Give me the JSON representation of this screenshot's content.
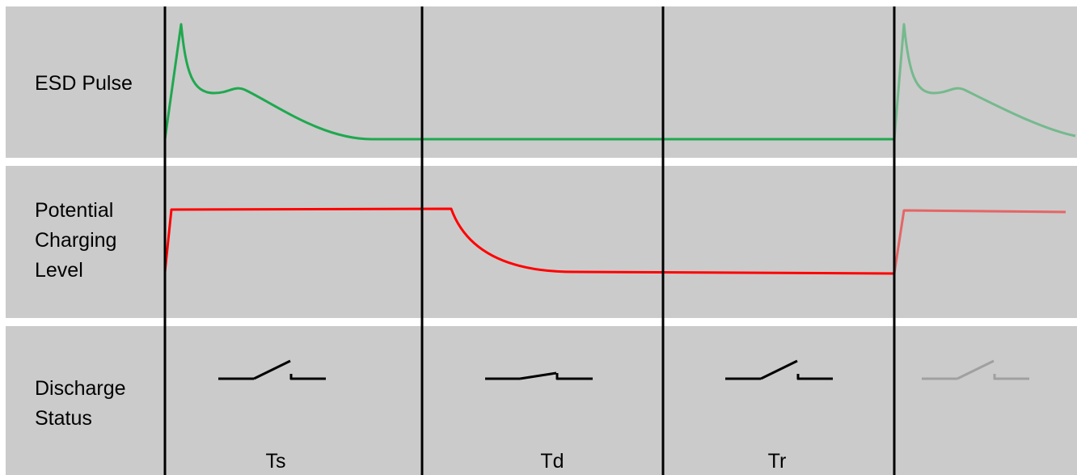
{
  "rows": {
    "esd_pulse": "ESD Pulse",
    "potential_charging_level": "Potential Charging Level",
    "discharge_status": "Discharge Status"
  },
  "phases": [
    "Ts",
    "Td",
    "Tr"
  ],
  "colors": {
    "background": "#cbcbcb",
    "esd_pulse": "#1fa84f",
    "charging_level": "#ff0000",
    "switch": "#000000",
    "dividers": "#000000"
  }
}
